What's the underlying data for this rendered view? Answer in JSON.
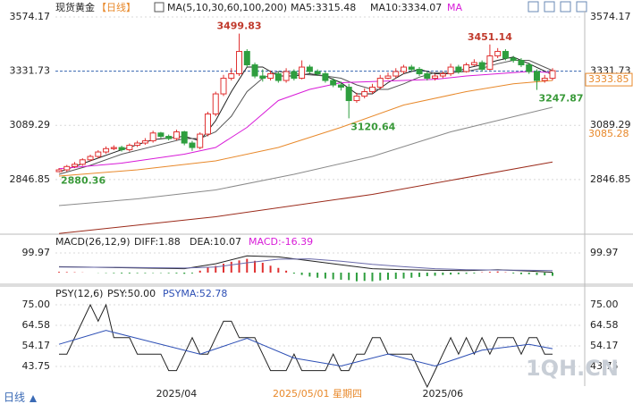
{
  "chart_data": [
    {
      "type": "candlestick",
      "title": "现货黄金",
      "period": "【日线】",
      "indicator": "MA(5,10,30,60,100,200)",
      "legend": [
        "MA5:3315.48",
        "MA10:3334.07",
        "MA"
      ],
      "legend_colors": [
        "#222222",
        "#222222",
        "#d81bd8"
      ],
      "ylim": [
        2602.17,
        3602.17
      ],
      "yticks": [
        3574.17,
        3331.73,
        3089.29,
        2846.85
      ],
      "xlim": [
        0,
        63
      ],
      "grid": true,
      "up_color": "#e03030",
      "down_color": "#2e9e3e",
      "open": [
        2882,
        2890,
        2905,
        2915,
        2935,
        2950,
        2970,
        2985,
        2990,
        2980,
        3000,
        3010,
        3020,
        3055,
        3040,
        3030,
        3060,
        3010,
        2990,
        3050,
        3140,
        3230,
        3300,
        3320,
        3420,
        3360,
        3310,
        3300,
        3320,
        3290,
        3330,
        3300,
        3350,
        3330,
        3320,
        3290,
        3270,
        3260,
        3200,
        3220,
        3240,
        3260,
        3300,
        3310,
        3330,
        3350,
        3340,
        3320,
        3300,
        3310,
        3320,
        3350,
        3330,
        3360,
        3370,
        3340,
        3400,
        3420,
        3390,
        3380,
        3360,
        3330,
        3290,
        3300
      ],
      "close": [
        2890,
        2905,
        2915,
        2935,
        2950,
        2970,
        2985,
        2990,
        2980,
        3000,
        3010,
        3020,
        3055,
        3040,
        3030,
        3060,
        3010,
        2990,
        3050,
        3140,
        3230,
        3300,
        3320,
        3420,
        3360,
        3310,
        3300,
        3320,
        3290,
        3330,
        3300,
        3350,
        3330,
        3320,
        3290,
        3270,
        3260,
        3200,
        3220,
        3240,
        3260,
        3300,
        3310,
        3330,
        3350,
        3340,
        3320,
        3300,
        3310,
        3320,
        3350,
        3330,
        3360,
        3370,
        3340,
        3400,
        3420,
        3390,
        3380,
        3360,
        3330,
        3290,
        3300,
        3333.85
      ],
      "high": [
        2898,
        2912,
        2925,
        2942,
        2958,
        2978,
        2995,
        3000,
        2998,
        3008,
        3020,
        3032,
        3065,
        3060,
        3048,
        3070,
        3065,
        3020,
        3058,
        3150,
        3240,
        3315,
        3345,
        3499.83,
        3430,
        3370,
        3340,
        3335,
        3330,
        3345,
        3340,
        3380,
        3360,
        3340,
        3330,
        3300,
        3285,
        3275,
        3235,
        3255,
        3275,
        3315,
        3325,
        3345,
        3360,
        3360,
        3350,
        3330,
        3320,
        3330,
        3365,
        3360,
        3370,
        3385,
        3380,
        3451.14,
        3435,
        3430,
        3400,
        3390,
        3370,
        3340,
        3315,
        3345
      ],
      "low": [
        2880.36,
        2882,
        2898,
        2908,
        2928,
        2942,
        2962,
        2978,
        2972,
        2972,
        2992,
        3002,
        3012,
        3032,
        3022,
        3022,
        3000,
        2975,
        2982,
        3040,
        3130,
        3220,
        3290,
        3310,
        3350,
        3300,
        3285,
        3290,
        3280,
        3280,
        3290,
        3295,
        3320,
        3310,
        3280,
        3260,
        3245,
        3120.64,
        3190,
        3210,
        3230,
        3250,
        3295,
        3300,
        3320,
        3330,
        3310,
        3290,
        3290,
        3300,
        3310,
        3320,
        3325,
        3355,
        3330,
        3335,
        3390,
        3380,
        3370,
        3350,
        3320,
        3247.87,
        3280,
        3290
      ],
      "series": [
        {
          "color": "#222222",
          "x": [
            0,
            4,
            8,
            12,
            16,
            18,
            20,
            22,
            24,
            26,
            28,
            30,
            32,
            34,
            36,
            38,
            40,
            42,
            44,
            46,
            48,
            50,
            52,
            54,
            56,
            58,
            60,
            63
          ],
          "values": [
            2880,
            2930,
            2980,
            3025,
            3040,
            3020,
            3110,
            3240,
            3350,
            3350,
            3310,
            3310,
            3320,
            3310,
            3280,
            3230,
            3230,
            3280,
            3320,
            3340,
            3320,
            3320,
            3345,
            3360,
            3380,
            3395,
            3365,
            3315.48
          ]
        },
        {
          "color": "#555555",
          "x": [
            0,
            4,
            8,
            12,
            16,
            18,
            20,
            22,
            24,
            26,
            28,
            30,
            32,
            34,
            36,
            38,
            40,
            42,
            44,
            46,
            48,
            50,
            52,
            54,
            56,
            58,
            60,
            63
          ],
          "values": [
            2870,
            2910,
            2960,
            2995,
            3030,
            3030,
            3060,
            3130,
            3240,
            3300,
            3330,
            3320,
            3315,
            3310,
            3300,
            3270,
            3250,
            3250,
            3275,
            3305,
            3325,
            3325,
            3330,
            3345,
            3365,
            3380,
            3380,
            3334.07
          ]
        },
        {
          "color": "#d81bd8",
          "x": [
            0,
            8,
            16,
            20,
            24,
            28,
            32,
            36,
            40,
            44,
            48,
            52,
            56,
            60,
            63
          ],
          "values": [
            2895,
            2920,
            2960,
            2990,
            3080,
            3200,
            3250,
            3280,
            3285,
            3290,
            3295,
            3310,
            3320,
            3330,
            3325
          ]
        },
        {
          "color": "#e8892b",
          "x": [
            0,
            10,
            20,
            28,
            36,
            44,
            52,
            58,
            63
          ],
          "values": [
            2862,
            2890,
            2930,
            2990,
            3080,
            3180,
            3240,
            3275,
            3290
          ]
        },
        {
          "color": "#8a8a8a",
          "x": [
            0,
            10,
            20,
            30,
            40,
            50,
            63
          ],
          "values": [
            2730,
            2760,
            2800,
            2870,
            2950,
            3060,
            3170
          ]
        },
        {
          "color": "#9b2a1a",
          "x": [
            0,
            20,
            40,
            63
          ],
          "values": [
            2605,
            2680,
            2780,
            2925
          ]
        }
      ],
      "annotations": [
        {
          "index": 23,
          "value": 3499.83,
          "kind": "high",
          "color": "#c0392b"
        },
        {
          "index": 55,
          "value": 3451.14,
          "kind": "high",
          "color": "#c0392b"
        },
        {
          "index": 0,
          "value": 2880.36,
          "kind": "low",
          "color": "#3a9a3a"
        },
        {
          "index": 37,
          "value": 3120.64,
          "kind": "low",
          "color": "#3a9a3a"
        },
        {
          "index": 61,
          "value": 3247.87,
          "kind": "low",
          "color": "#3a9a3a"
        }
      ],
      "price_tags": [
        {
          "value": 3333.85,
          "color": "#e8892b",
          "boxed": true
        },
        {
          "value": 3085.28,
          "color": "#e8892b",
          "boxed": false
        }
      ]
    },
    {
      "type": "macd",
      "title": "MACD(26,12,9)",
      "legend": [
        "DIFF:1.88",
        "DEA:10.07",
        "MACD:-16.39"
      ],
      "legend_colors": [
        "#222222",
        "#222222",
        "#d81bd8"
      ],
      "ylim": [
        -59,
        168
      ],
      "yticks": [
        99.97
      ],
      "xlim": [
        0,
        63
      ],
      "up_color": "#e03030",
      "down_color": "#2e9e3e",
      "histogram": [
        4,
        3,
        2,
        1,
        0,
        -1,
        -2,
        -3,
        -4,
        -4,
        -3,
        -3,
        -2,
        -2,
        -3,
        -4,
        -6,
        -4,
        10,
        25,
        34,
        45,
        55,
        62,
        70,
        60,
        50,
        35,
        24,
        10,
        -5,
        -12,
        -20,
        -26,
        -30,
        -34,
        -36,
        -38,
        -44,
        -42,
        -44,
        -40,
        -36,
        -32,
        -30,
        -26,
        -22,
        -18,
        -16,
        -12,
        -10,
        -8,
        -6,
        -4,
        2,
        4,
        6,
        2,
        -4,
        -8,
        -8,
        -12,
        -14,
        -16.39
      ],
      "series": [
        {
          "color": "#222222",
          "x": [
            0,
            8,
            16,
            20,
            24,
            28,
            32,
            36,
            40,
            44,
            48,
            52,
            56,
            60,
            63
          ],
          "values": [
            30,
            25,
            20,
            45,
            85,
            80,
            60,
            40,
            20,
            15,
            12,
            10,
            15,
            8,
            1.88
          ]
        },
        {
          "color": "#6a6aaa",
          "x": [
            0,
            8,
            16,
            20,
            24,
            28,
            32,
            36,
            40,
            44,
            48,
            52,
            56,
            60,
            63
          ],
          "values": [
            28,
            27,
            23,
            28,
            50,
            68,
            70,
            58,
            42,
            30,
            20,
            15,
            13,
            12,
            10.07
          ]
        }
      ]
    },
    {
      "type": "line",
      "title": "PSY(12,6)",
      "legend": [
        "PSY:50.00",
        "PSYMA:52.78"
      ],
      "legend_colors": [
        "#222222",
        "#2d4fb5"
      ],
      "ylim": [
        34.7,
        83.6
      ],
      "yticks": [
        {
          "value": 75,
          "label": "75.00"
        },
        64.58,
        54.17,
        43.75
      ],
      "xlim": [
        0,
        63
      ],
      "xticks": [
        {
          "value": 15,
          "label": "2025/04"
        },
        {
          "value": 49,
          "label": "2025/06"
        }
      ],
      "series": [
        {
          "color": "#222222",
          "values": [
            50,
            50,
            58.33,
            66.67,
            75,
            66.67,
            75,
            58.33,
            58.33,
            58.33,
            50,
            50,
            50,
            50,
            41.67,
            41.67,
            50,
            58.33,
            50,
            50,
            58.33,
            66.67,
            66.67,
            58.33,
            58.33,
            58.33,
            50,
            41.67,
            41.67,
            41.67,
            50,
            41.67,
            41.67,
            41.67,
            41.67,
            50,
            41.67,
            41.67,
            50,
            50,
            58.33,
            58.33,
            50,
            50,
            50,
            50,
            41.67,
            33.33,
            41.67,
            50,
            58.33,
            50,
            58.33,
            50,
            58.33,
            50,
            58.33,
            58.33,
            58.33,
            50,
            58.33,
            58.33,
            50,
            50
          ]
        },
        {
          "color": "#2d4fb5",
          "x": [
            0,
            6,
            12,
            18,
            24,
            30,
            36,
            42,
            48,
            54,
            60,
            63
          ],
          "values": [
            55,
            62,
            56,
            50,
            58,
            48,
            44,
            50,
            44,
            52,
            55,
            52.78
          ]
        }
      ]
    }
  ],
  "date_label": "2025/05/01 星期四",
  "period_tab": "日线",
  "watermark": "1QH.CN"
}
